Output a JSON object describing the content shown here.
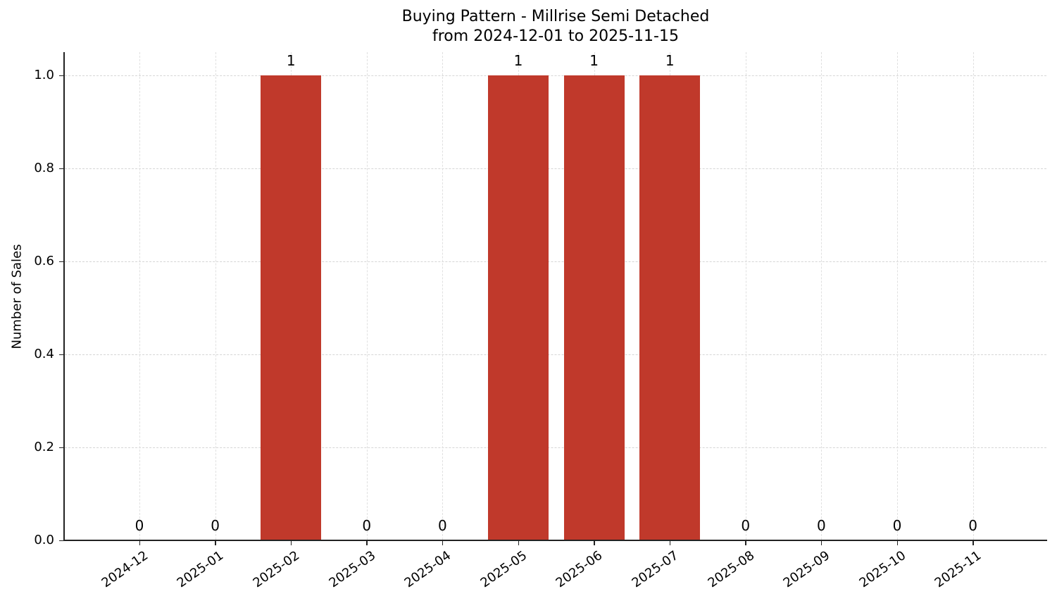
{
  "chart_data": {
    "type": "bar",
    "title": "Buying Pattern - Millrise Semi Detached",
    "subtitle": "from 2024-12-01 to 2025-11-15",
    "xlabel": "",
    "ylabel": "Number of Sales",
    "categories": [
      "2024-12",
      "2025-01",
      "2025-02",
      "2025-03",
      "2025-04",
      "2025-05",
      "2025-06",
      "2025-07",
      "2025-08",
      "2025-09",
      "2025-10",
      "2025-11"
    ],
    "values": [
      0,
      0,
      1,
      0,
      0,
      1,
      1,
      1,
      0,
      0,
      0,
      0
    ],
    "data_labels": [
      "0",
      "0",
      "1",
      "0",
      "0",
      "1",
      "1",
      "1",
      "0",
      "0",
      "0",
      "0"
    ],
    "yticks": [
      "0.0",
      "0.2",
      "0.4",
      "0.6",
      "0.8",
      "1.0"
    ],
    "ylim": [
      0,
      1.05
    ],
    "grid": true,
    "bar_color": "#c0392b",
    "legend": null
  }
}
